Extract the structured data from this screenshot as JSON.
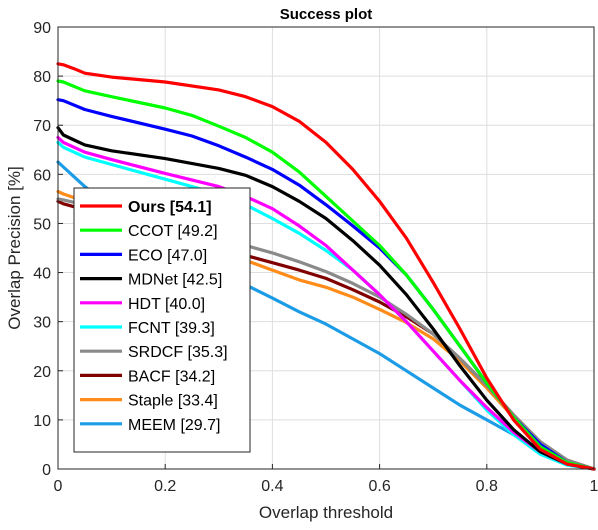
{
  "chart_data": {
    "type": "line",
    "title": "Success plot",
    "xlabel": "Overlap threshold",
    "ylabel": "Overlap Precision [%]",
    "xlim": [
      0,
      1
    ],
    "ylim": [
      0,
      90
    ],
    "x_ticks": [
      0,
      0.2,
      0.4,
      0.6,
      0.8,
      1
    ],
    "x_tick_labels": [
      "0",
      "0.2",
      "0.4",
      "0.6",
      "0.8",
      "1"
    ],
    "y_ticks": [
      0,
      10,
      20,
      30,
      40,
      50,
      60,
      70,
      80,
      90
    ],
    "y_tick_labels": [
      "0",
      "10",
      "20",
      "30",
      "40",
      "50",
      "60",
      "70",
      "80",
      "90"
    ],
    "grid": true,
    "legend_position": "lower-left",
    "series": [
      {
        "name": "Ours [54.1]",
        "color": "#ff0000",
        "bold": true,
        "x": [
          0,
          0.01,
          0.03,
          0.05,
          0.1,
          0.2,
          0.3,
          0.35,
          0.4,
          0.45,
          0.5,
          0.55,
          0.6,
          0.65,
          0.7,
          0.75,
          0.8,
          0.85,
          0.9,
          0.95,
          1
        ],
        "y": [
          82.5,
          82.3,
          81.5,
          80.6,
          79.8,
          78.8,
          77.2,
          75.8,
          73.8,
          70.8,
          66.5,
          61,
          54.5,
          47,
          38,
          28.5,
          18.5,
          10,
          4,
          1,
          0
        ]
      },
      {
        "name": "CCOT [49.2]",
        "color": "#00ff00",
        "x": [
          0,
          0.01,
          0.05,
          0.1,
          0.2,
          0.25,
          0.3,
          0.35,
          0.4,
          0.45,
          0.5,
          0.55,
          0.6,
          0.65,
          0.7,
          0.75,
          0.8,
          0.85,
          0.9,
          0.95,
          1
        ],
        "y": [
          79,
          78.8,
          77,
          75.8,
          73.5,
          72,
          69.8,
          67.5,
          64.5,
          60.5,
          55.5,
          50.5,
          45.5,
          39.5,
          32.5,
          25,
          17.5,
          10.5,
          4.5,
          1.3,
          0
        ]
      },
      {
        "name": "ECO [47.0]",
        "color": "#0000ff",
        "x": [
          0,
          0.01,
          0.05,
          0.1,
          0.2,
          0.25,
          0.3,
          0.35,
          0.4,
          0.45,
          0.5,
          0.55,
          0.6,
          0.65,
          0.7,
          0.75,
          0.8,
          0.85,
          0.9,
          0.95,
          1
        ],
        "y": [
          75.2,
          75,
          73.2,
          71.8,
          69.2,
          67.8,
          65.8,
          63.5,
          61,
          57.8,
          53.8,
          49.5,
          45,
          39.5,
          32.5,
          25,
          17.5,
          10.5,
          5,
          1.3,
          0
        ]
      },
      {
        "name": "MDNet [42.5]",
        "color": "#000000",
        "x": [
          0,
          0.01,
          0.03,
          0.05,
          0.1,
          0.2,
          0.3,
          0.35,
          0.4,
          0.45,
          0.5,
          0.55,
          0.6,
          0.65,
          0.7,
          0.75,
          0.8,
          0.85,
          0.9,
          0.95,
          1
        ],
        "y": [
          69.5,
          68,
          67,
          66,
          64.8,
          63.2,
          61.2,
          59.8,
          57.5,
          54.5,
          51,
          46.5,
          41.5,
          35.5,
          28.5,
          21,
          14,
          8,
          3.5,
          1,
          0
        ]
      },
      {
        "name": "HDT [40.0]",
        "color": "#ff00ff",
        "x": [
          0,
          0.01,
          0.05,
          0.1,
          0.2,
          0.3,
          0.35,
          0.4,
          0.45,
          0.5,
          0.55,
          0.6,
          0.65,
          0.7,
          0.75,
          0.8,
          0.85,
          0.9,
          0.95,
          1
        ],
        "y": [
          67.5,
          66.5,
          64.5,
          63,
          60.2,
          57.5,
          55.5,
          53,
          49.5,
          45.5,
          40.5,
          35.5,
          30,
          24,
          18,
          12.5,
          7.5,
          3.5,
          1,
          0
        ]
      },
      {
        "name": "FCNT [39.3]",
        "color": "#00ffff",
        "x": [
          0,
          0.01,
          0.05,
          0.1,
          0.2,
          0.3,
          0.35,
          0.4,
          0.45,
          0.5,
          0.55,
          0.6,
          0.65,
          0.7,
          0.75,
          0.8,
          0.85,
          0.9,
          0.95,
          1
        ],
        "y": [
          66.5,
          65.5,
          63.5,
          62,
          59,
          56,
          53.8,
          51,
          48,
          44.5,
          40.5,
          35.5,
          30,
          24,
          18,
          12,
          7,
          3,
          0.8,
          0
        ]
      },
      {
        "name": "SRDCF [35.3]",
        "color": "#8a8a8a",
        "x": [
          0,
          0.01,
          0.05,
          0.1,
          0.2,
          0.3,
          0.35,
          0.4,
          0.45,
          0.5,
          0.55,
          0.6,
          0.65,
          0.7,
          0.75,
          0.8,
          0.85,
          0.9,
          0.95,
          1
        ],
        "y": [
          55,
          54.8,
          53.8,
          52.5,
          49.5,
          47,
          45.5,
          44,
          42.2,
          40.2,
          37.8,
          35,
          31.5,
          27.5,
          22.5,
          17,
          11,
          5.5,
          1.8,
          0
        ]
      },
      {
        "name": "BACF [34.2]",
        "color": "#800000",
        "x": [
          0,
          0.01,
          0.05,
          0.1,
          0.2,
          0.3,
          0.35,
          0.4,
          0.45,
          0.5,
          0.55,
          0.6,
          0.65,
          0.7,
          0.75,
          0.8,
          0.85,
          0.9,
          0.95,
          1
        ],
        "y": [
          54.5,
          54,
          52.8,
          51,
          48,
          45,
          43.5,
          42,
          40.5,
          38.8,
          36.5,
          34,
          31,
          27.5,
          22.5,
          17,
          11,
          5.5,
          1.8,
          0
        ]
      },
      {
        "name": "Staple [33.4]",
        "color": "#ff8c1a",
        "x": [
          0,
          0.01,
          0.05,
          0.1,
          0.2,
          0.3,
          0.35,
          0.4,
          0.45,
          0.5,
          0.55,
          0.6,
          0.65,
          0.7,
          0.75,
          0.8,
          0.85,
          0.9,
          0.95,
          1
        ],
        "y": [
          56.5,
          56,
          54.5,
          52.5,
          48.5,
          44.5,
          42.5,
          40.5,
          38.5,
          37,
          35,
          32.5,
          29.8,
          26.5,
          22,
          16.5,
          10.5,
          5,
          1.5,
          0
        ]
      },
      {
        "name": "MEEM [29.7]",
        "color": "#1c9ce6",
        "x": [
          0,
          0.01,
          0.03,
          0.05,
          0.1,
          0.2,
          0.3,
          0.35,
          0.4,
          0.45,
          0.5,
          0.55,
          0.6,
          0.65,
          0.7,
          0.75,
          0.8,
          0.85,
          0.9,
          0.95,
          1
        ],
        "y": [
          62.5,
          61.5,
          59.5,
          57.5,
          53.5,
          46,
          40,
          37.5,
          34.8,
          32,
          29.5,
          26.5,
          23.5,
          20,
          16.5,
          13,
          10,
          7,
          4,
          1.2,
          0
        ]
      }
    ]
  }
}
